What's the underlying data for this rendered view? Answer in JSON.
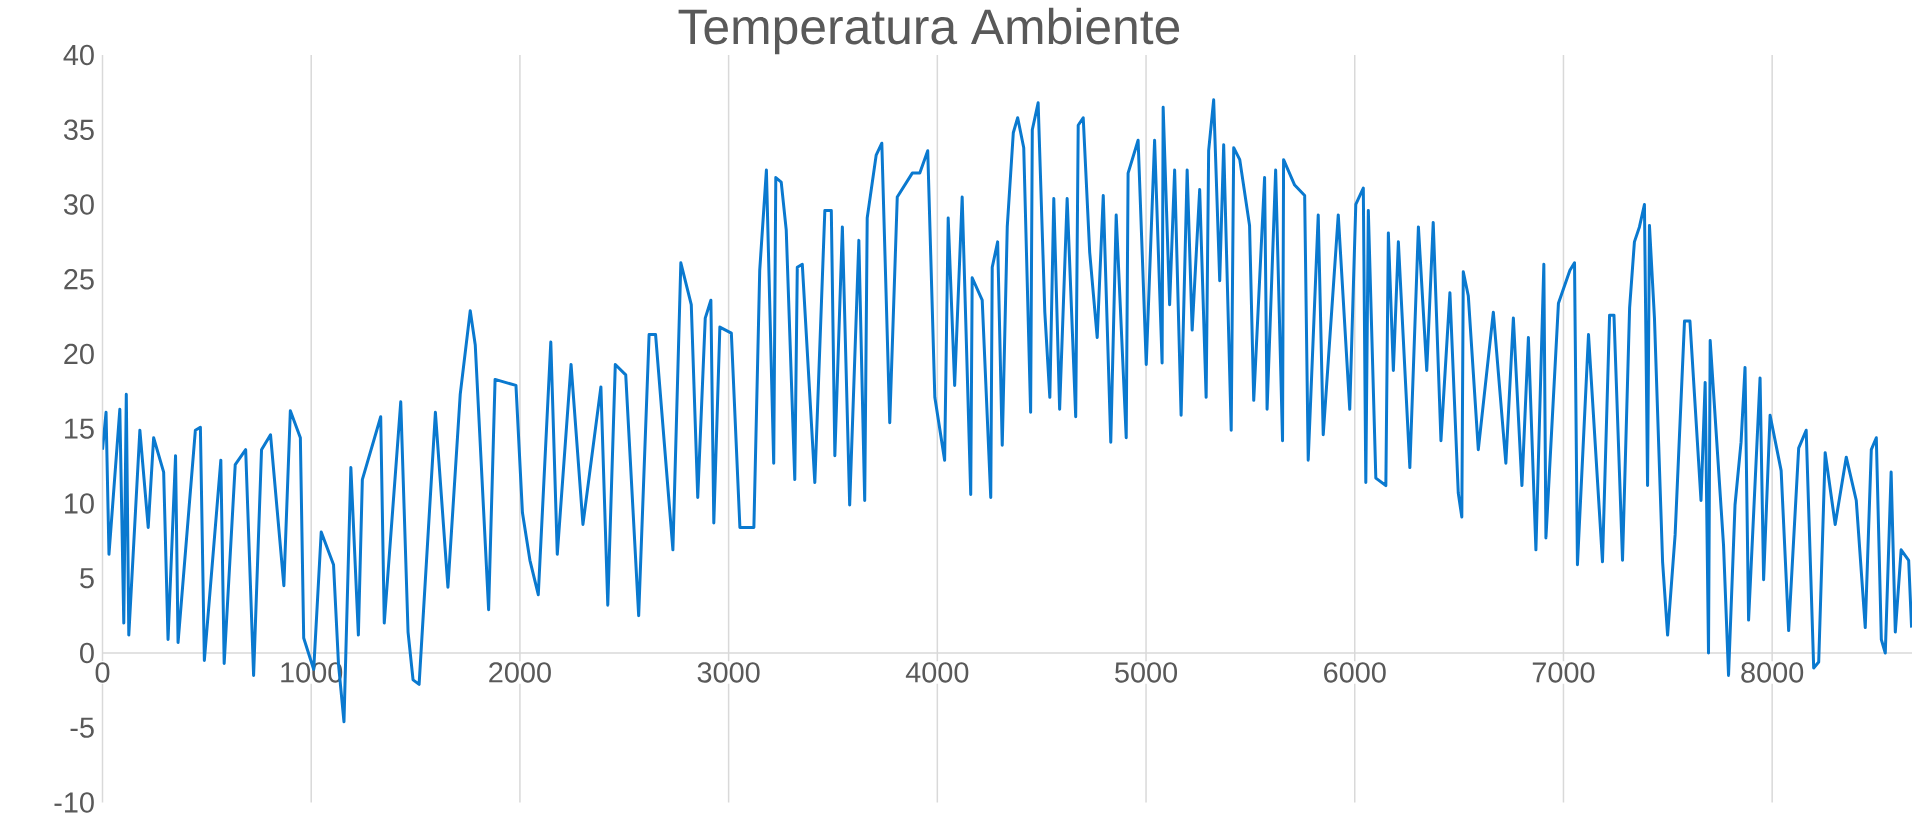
{
  "chart_data": {
    "type": "line",
    "title": "Temperatura Ambiente",
    "color": "#0a79cf",
    "grid": "x",
    "xlim": [
      0,
      8670
    ],
    "ylim": [
      -10,
      40
    ],
    "xticks": [
      0,
      1000,
      2000,
      3000,
      4000,
      5000,
      6000,
      7000,
      8000
    ],
    "yticks": [
      -10,
      -5,
      0,
      5,
      10,
      15,
      20,
      25,
      30,
      35,
      40
    ],
    "x": [
      0,
      17,
      31,
      83,
      102,
      114,
      126,
      179,
      219,
      245,
      293,
      314,
      350,
      362,
      445,
      469,
      488,
      567,
      583,
      636,
      686,
      724,
      762,
      805,
      869,
      900,
      948,
      964,
      1012,
      1048,
      1107,
      1131,
      1157,
      1190,
      1226,
      1245,
      1333,
      1350,
      1429,
      1464,
      1488,
      1517,
      1595,
      1655,
      1714,
      1762,
      1786,
      1850,
      1881,
      1981,
      2012,
      2048,
      2088,
      2148,
      2179,
      2245,
      2302,
      2388,
      2421,
      2457,
      2507,
      2569,
      2619,
      2650,
      2733,
      2771,
      2821,
      2852,
      2888,
      2915,
      2929,
      2958,
      3013,
      3054,
      3121,
      3149,
      3181,
      3216,
      3226,
      3252,
      3276,
      3317,
      3329,
      3353,
      3413,
      3461,
      3492,
      3509,
      3545,
      3580,
      3624,
      3652,
      3664,
      3707,
      3734,
      3772,
      3808,
      3880,
      3916,
      3954,
      3988,
      4035,
      4052,
      4083,
      4119,
      4136,
      4160,
      4167,
      4215,
      4256,
      4263,
      4289,
      4311,
      4335,
      4364,
      4385,
      4414,
      4447,
      4455,
      4483,
      4515,
      4539,
      4558,
      4586,
      4622,
      4663,
      4675,
      4699,
      4730,
      4766,
      4795,
      4831,
      4857,
      4905,
      4914,
      4962,
      5001,
      5041,
      5077,
      5082,
      5113,
      5137,
      5168,
      5197,
      5221,
      5257,
      5288,
      5300,
      5324,
      5353,
      5372,
      5408,
      5420,
      5449,
      5496,
      5516,
      5568,
      5580,
      5621,
      5654,
      5659,
      5712,
      5760,
      5777,
      5825,
      5849,
      5921,
      5976,
      6005,
      6041,
      6053,
      6065,
      6101,
      6149,
      6161,
      6185,
      6209,
      6264,
      6305,
      6345,
      6376,
      6413,
      6456,
      6496,
      6513,
      6520,
      6544,
      6592,
      6664,
      6724,
      6760,
      6801,
      6832,
      6868,
      6906,
      6916,
      6976,
      7031,
      7053,
      7067,
      7120,
      7187,
      7221,
      7242,
      7283,
      7317,
      7340,
      7364,
      7388,
      7403,
      7412,
      7436,
      7475,
      7499,
      7535,
      7580,
      7606,
      7659,
      7679,
      7695,
      7703,
      7767,
      7791,
      7822,
      7851,
      7870,
      7887,
      7942,
      7959,
      7990,
      8043,
      8079,
      8127,
      8163,
      8199,
      8223,
      8254,
      8302,
      8355,
      8403,
      8446,
      8475,
      8499,
      8523,
      8542,
      8570,
      8590,
      8618,
      8654,
      8668
    ],
    "values": [
      13.6,
      16.1,
      6.6,
      16.3,
      2.0,
      17.3,
      1.2,
      14.9,
      8.4,
      14.4,
      12.1,
      0.9,
      13.2,
      0.7,
      14.9,
      15.1,
      -0.5,
      12.9,
      -0.7,
      12.6,
      13.6,
      -1.5,
      13.6,
      14.6,
      4.5,
      16.2,
      14.4,
      1.0,
      -1.1,
      8.1,
      5.9,
      -0.8,
      -4.6,
      12.4,
      1.2,
      11.6,
      15.8,
      2.0,
      16.8,
      1.4,
      -1.8,
      -2.1,
      16.1,
      4.4,
      17.3,
      22.9,
      20.6,
      2.9,
      18.3,
      17.9,
      9.4,
      6.2,
      3.9,
      20.8,
      6.6,
      19.3,
      8.6,
      17.8,
      3.2,
      19.3,
      18.6,
      2.5,
      21.3,
      21.3,
      6.9,
      26.1,
      23.3,
      10.4,
      22.4,
      23.6,
      8.7,
      21.8,
      21.4,
      8.4,
      8.4,
      25.6,
      32.3,
      12.7,
      31.8,
      31.5,
      28.3,
      11.6,
      25.8,
      26.0,
      11.4,
      29.6,
      29.6,
      13.2,
      28.5,
      9.9,
      27.6,
      10.2,
      29.1,
      33.3,
      34.1,
      15.4,
      30.5,
      32.1,
      32.1,
      33.6,
      17.1,
      12.9,
      29.1,
      17.9,
      30.5,
      22.3,
      10.6,
      25.1,
      23.6,
      10.4,
      25.8,
      27.5,
      13.9,
      28.5,
      34.8,
      35.8,
      33.8,
      16.1,
      35.0,
      36.8,
      22.8,
      17.1,
      30.4,
      16.3,
      30.4,
      15.8,
      35.3,
      35.8,
      26.8,
      21.1,
      30.6,
      14.1,
      29.3,
      14.4,
      32.1,
      34.3,
      19.3,
      34.3,
      19.4,
      36.5,
      23.3,
      32.3,
      15.9,
      32.3,
      21.6,
      31.0,
      17.1,
      33.6,
      37.0,
      24.9,
      34.0,
      14.9,
      33.8,
      33.0,
      28.6,
      16.9,
      31.8,
      16.3,
      32.3,
      14.2,
      33.0,
      31.3,
      30.6,
      12.9,
      29.3,
      14.6,
      29.3,
      16.3,
      30.0,
      31.1,
      11.4,
      29.6,
      11.7,
      11.2,
      28.1,
      18.9,
      27.5,
      12.4,
      28.5,
      18.9,
      28.8,
      14.2,
      24.1,
      10.7,
      9.1,
      25.5,
      23.9,
      13.6,
      22.8,
      12.7,
      22.4,
      11.2,
      21.1,
      6.9,
      26.0,
      7.7,
      23.4,
      25.6,
      26.1,
      5.9,
      21.3,
      6.1,
      22.6,
      22.6,
      6.2,
      23.1,
      27.5,
      28.5,
      30.0,
      11.2,
      28.6,
      22.4,
      6.1,
      1.2,
      7.9,
      22.2,
      22.2,
      10.2,
      18.1,
      0.0,
      20.9,
      7.2,
      -1.5,
      9.9,
      14.1,
      19.1,
      2.2,
      18.4,
      4.9,
      15.9,
      12.2,
      1.5,
      13.7,
      14.9,
      -1.0,
      -0.6,
      13.4,
      8.6,
      13.1,
      10.2,
      1.7,
      13.6,
      14.4,
      0.9,
      0.0,
      12.1,
      1.4,
      6.9,
      6.2,
      1.7
    ]
  }
}
